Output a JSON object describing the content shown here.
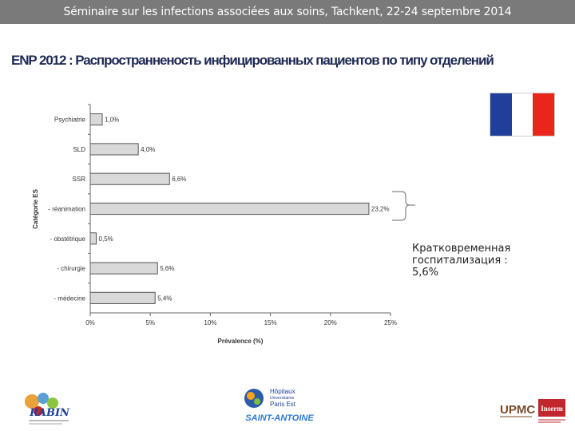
{
  "header": {
    "banner": "Séminaire sur les infections associées aux soins, Tachkent, 22-24 septembre 2014",
    "slide_title": "ENP 2012 : Распространненость инфицированных пациентов по типу отделений"
  },
  "chart_data": {
    "type": "bar",
    "orientation": "horizontal",
    "categories": [
      "Psychiatrie",
      "SLD",
      "SSR",
      "- réanimation",
      "- obstétrique",
      "- chirurgie",
      "- médecine"
    ],
    "values": [
      1.0,
      4.0,
      6.6,
      23.2,
      0.5,
      5.6,
      5.4
    ],
    "value_labels": [
      "1,0%",
      "4,0%",
      "6,6%",
      "23,2%",
      "0,5%",
      "5,6%",
      "5,4%"
    ],
    "xlabel": "Prévalence (%)",
    "ylabel": "Catégorie ES",
    "xlim": [
      0,
      25
    ],
    "x_ticks": [
      0,
      5,
      10,
      15,
      20,
      25
    ],
    "x_tick_labels": [
      "0%",
      "5%",
      "10%",
      "15%",
      "20%",
      "25%"
    ],
    "grid": false,
    "colors": {
      "bar_fill": "#d9d9d9",
      "bar_stroke": "#555555",
      "axis": "#666666"
    }
  },
  "annotation": {
    "text": "Кратковременная госпитализация : 5,6%",
    "bracket_color": "#888888"
  },
  "flag": {
    "icon": "french-flag-icon",
    "colors": [
      "#1f3f9a",
      "#ffffff",
      "#e8261c"
    ]
  },
  "logos": {
    "rabin": {
      "icon": "rabin-logo",
      "text": "RABIN"
    },
    "aphp": {
      "icon": "aphp-logo",
      "line1": "Hôpitaux",
      "line2": "Universitaires",
      "line3": "Paris Est",
      "line4": "SAINT-ANTOINE"
    },
    "upmc": {
      "icon": "upmc-logo",
      "text": "UPMC"
    },
    "inserm": {
      "icon": "inserm-logo",
      "text": "Inserm"
    }
  }
}
